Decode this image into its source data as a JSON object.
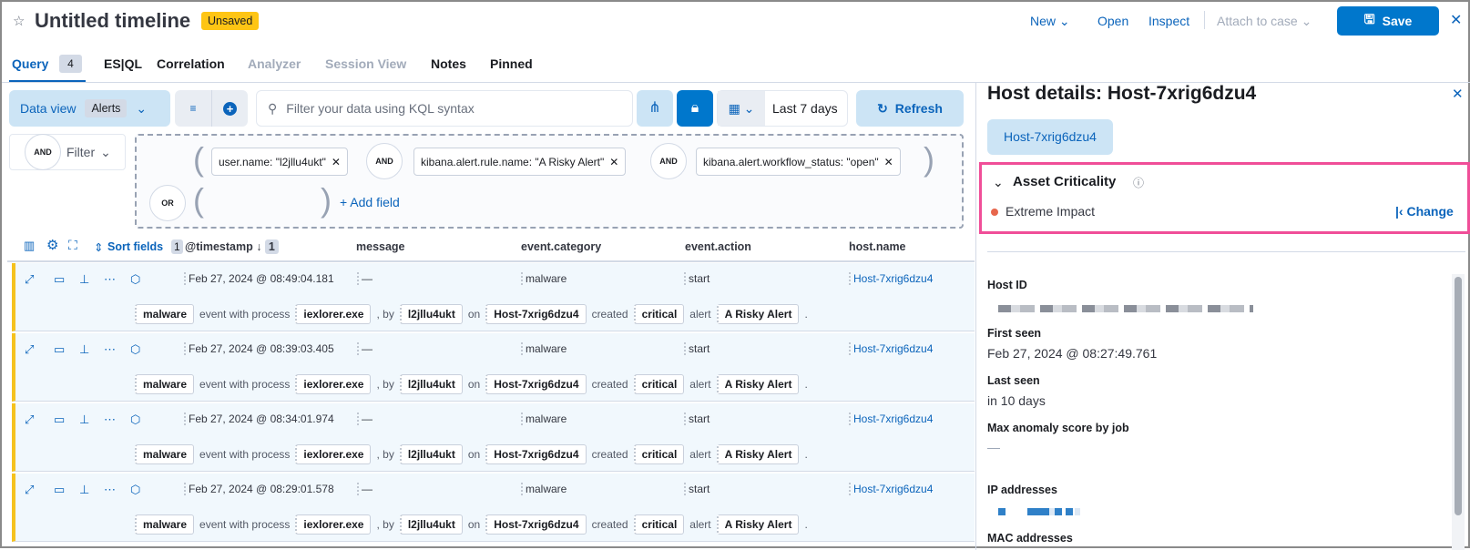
{
  "header": {
    "title": "Untitled timeline",
    "badge": "Unsaved",
    "new": "New",
    "open": "Open",
    "inspect": "Inspect",
    "attach": "Attach to case",
    "save": "Save"
  },
  "tabs": [
    {
      "label": "Query",
      "count": "4"
    },
    {
      "label": "ES|QL"
    },
    {
      "label": "Correlation"
    },
    {
      "label": "Analyzer"
    },
    {
      "label": "Session View"
    },
    {
      "label": "Notes"
    },
    {
      "label": "Pinned"
    }
  ],
  "toolbar": {
    "data_view": "Data view",
    "data_view_value": "Alerts",
    "search_placeholder": "Filter your data using KQL syntax",
    "date_range": "Last 7 days",
    "refresh": "Refresh"
  },
  "filters": {
    "and": "AND",
    "filter": "Filter",
    "or": "OR",
    "add_field": "+ Add field",
    "pills": [
      "user.name: \"l2jllu4ukt\"",
      "kibana.alert.rule.name: \"A Risky Alert\"",
      "kibana.alert.workflow_status: \"open\""
    ]
  },
  "table": {
    "sort_fields": "Sort fields",
    "sort_count": "1",
    "sort_col_count": "1",
    "columns": [
      "@timestamp",
      "message",
      "event.category",
      "event.action",
      "host.name"
    ],
    "rows": [
      {
        "timestamp": "Feb 27, 2024 @ 08:49:04.181",
        "message": "—",
        "category": "malware",
        "action": "start",
        "host": "Host-7xrig6dzu4"
      },
      {
        "timestamp": "Feb 27, 2024 @ 08:39:03.405",
        "message": "—",
        "category": "malware",
        "action": "start",
        "host": "Host-7xrig6dzu4"
      },
      {
        "timestamp": "Feb 27, 2024 @ 08:34:01.974",
        "message": "—",
        "category": "malware",
        "action": "start",
        "host": "Host-7xrig6dzu4"
      },
      {
        "timestamp": "Feb 27, 2024 @ 08:29:01.578",
        "message": "—",
        "category": "malware",
        "action": "start",
        "host": "Host-7xrig6dzu4"
      }
    ],
    "summary": {
      "category": "malware",
      "t1": "event with process",
      "process": "iexlorer.exe",
      "t2": ", by",
      "user": "l2jllu4ukt",
      "t3": "on",
      "host": "Host-7xrig6dzu4",
      "t4": "created",
      "severity": "critical",
      "t5": "alert",
      "rule": "A Risky Alert",
      "t6": "."
    }
  },
  "panel": {
    "title": "Host details: Host-7xrig6dzu4",
    "host_badge": "Host-7xrig6dzu4",
    "asset_title": "Asset Criticality",
    "criticality": "Extreme Impact",
    "criticality_color": "#e7664c",
    "change": "Change",
    "host_id_label": "Host ID",
    "first_seen_label": "First seen",
    "first_seen": "Feb 27, 2024 @ 08:27:49.761",
    "last_seen_label": "Last seen",
    "last_seen": "in 10 days",
    "anomaly_label": "Max anomaly score by job",
    "anomaly": "—",
    "ip_label": "IP addresses",
    "mac_label": "MAC addresses"
  },
  "colors": {
    "accent": "#0b64bb",
    "primary_button": "#0077cc",
    "highlight": "#f04e98",
    "unsaved": "#fec514"
  }
}
